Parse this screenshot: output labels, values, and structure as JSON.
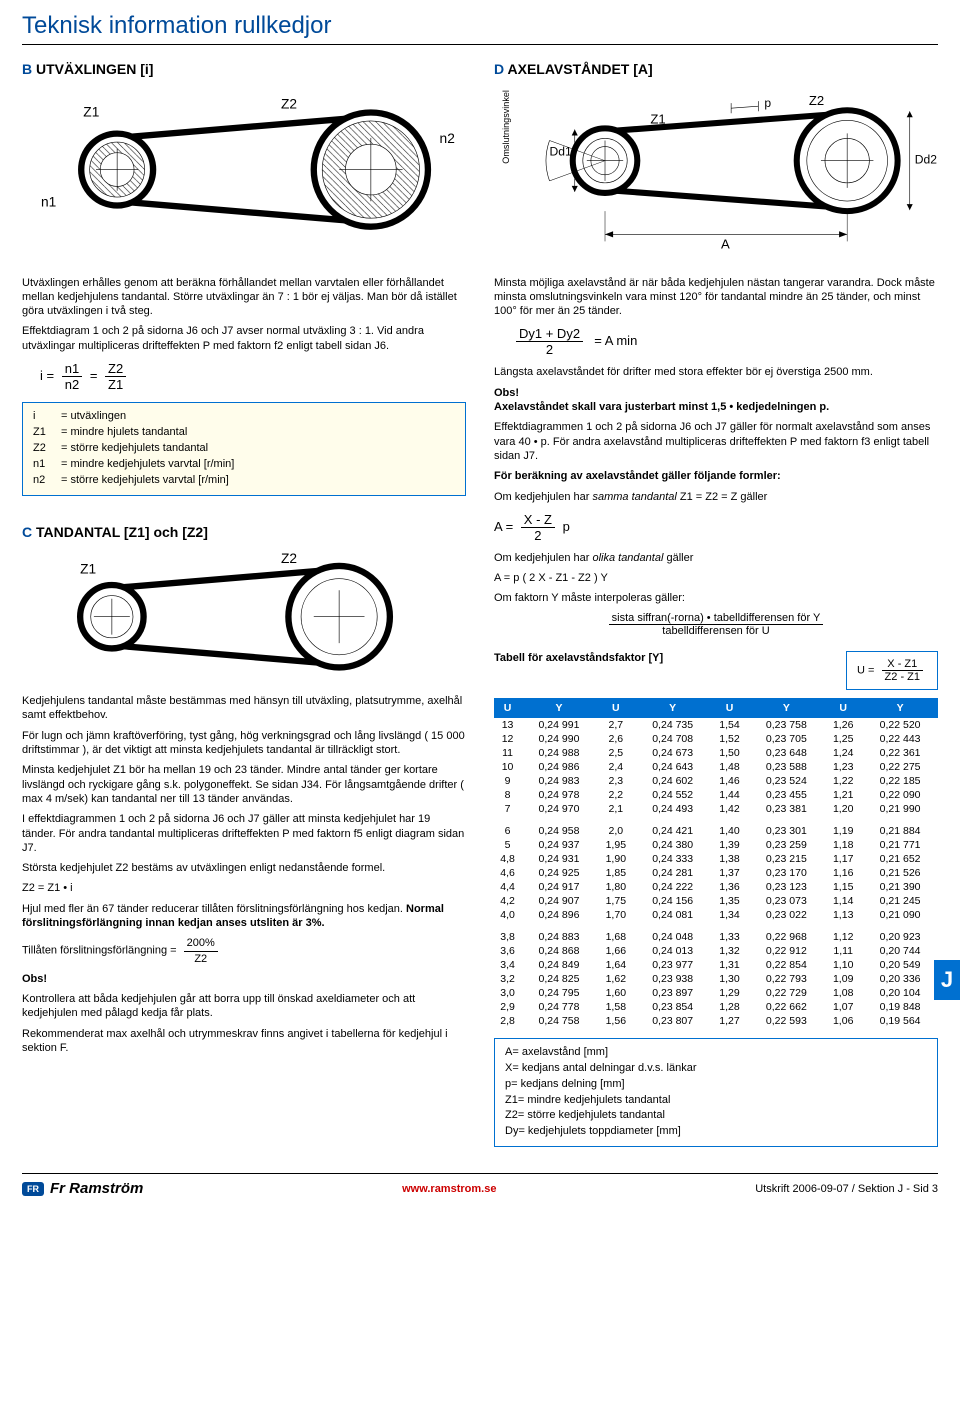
{
  "page_title": "Teknisk information rullkedjor",
  "sections": {
    "B": {
      "letter": "B",
      "title": "UTVÄXLINGEN  [i]"
    },
    "D": {
      "letter": "D",
      "title": "AXELAVSTÅNDET  [A]"
    },
    "C": {
      "letter": "C",
      "title": "TANDANTAL  [Z1] och  [Z2]"
    }
  },
  "diagram_labels": {
    "Z1": "Z1",
    "Z2": "Z2",
    "n1": "n1",
    "n2": "n2",
    "Dd1": "Dd1",
    "Dd2": "Dd2",
    "p": "p",
    "A": "A",
    "omslut": "Omslutningsvinkel"
  },
  "text": {
    "b_p1": "Utväxlingen erhålles genom att beräkna förhållandet mellan varvtalen eller förhållandet mellan kedjehjulens tandantal. Större utväxlingar än 7 : 1 bör ej väljas. Man bör då istället göra utväxlingen i två steg.",
    "b_p2": "Effektdiagram 1 och 2 på sidorna J6 och J7 avser normal utväxling 3 : 1. Vid andra utväxlingar multipliceras drifteffekten P med faktorn f2 enligt tabell sidan J6.",
    "i_formula_lhs": "i  =",
    "i_formula_eq": "=",
    "d_p1": "Minsta möjliga axelavstånd är när båda kedjehjulen nästan tangerar varandra. Dock måste minsta omslutningsvinkeln vara minst 120° för tandantal mindre än 25 tänder, och minst 100° för mer än 25 tänder.",
    "amin_lhs": "Dy1 + Dy2",
    "amin_den": "2",
    "amin_rhs": "=   A min",
    "d_p2": "Längsta axelavståndet för drifter med stora effekter bör ej överstiga 2500 mm.",
    "d_obs_h": "Obs!",
    "d_obs": "Axelavståndet skall vara justerbart minst 1,5 • kedjedelningen p.",
    "d_p3": "Effektdiagrammen 1 och 2 på sidorna J6 och J7 gäller för normalt axelavstånd som anses vara 40 • p. För andra axelavstånd multipliceras drifteffekten P med faktorn f3 enligt tabell sidan J7.",
    "d_p4": "För beräkning av axelavståndet gäller följande formler:",
    "d_same": "Om kedjehjulen har samma tandantal Z1 = Z2 = Z gäller",
    "a_same_lhs": "A =",
    "a_same_num": "X - Z",
    "a_same_den": "2",
    "a_same_tail": "p",
    "d_diff": "Om kedjehjulen har olika tandantal gäller",
    "a_diff": "A = p ( 2 X - Z1 - Z2 ) Y",
    "d_interp": "Om faktorn Y måste interpoleras gäller:",
    "interp_num": "sista siffran(-rorna) • tabelldifferensen för Y",
    "interp_den": "tabelldifferensen för U",
    "tabell_title": "Tabell för axelavståndsfaktor  [Y]",
    "u_formula_lhs": "U =",
    "u_formula_num": "X - Z1",
    "u_formula_den": "Z2 - Z1",
    "c_p1": "Kedjehjulens tandantal måste bestämmas med hänsyn till utväxling, platsutrymme, axelhål samt effektbehov.",
    "c_p2": "För lugn och jämn kraftöverföring, tyst gång, hög verkningsgrad och lång livslängd ( 15 000 driftstimmar ), är det viktigt att minsta kedjehjulets tandantal är tillräckligt stort.",
    "c_p3": "Minsta kedjehjulet Z1 bör ha mellan 19 och 23 tänder. Mindre antal tänder ger kortare livslängd och ryckigare gång s.k. polygoneffekt. Se sidan J34. För långsamtgående drifter ( max 4 m/sek) kan tandantal ner till 13 tänder användas.",
    "c_p4": "I effektdiagrammen 1 och 2 på sidorna J6 och J7 gäller att minsta kedjehjulet har 19 tänder. För andra tandantal multipliceras drifteffekten P med faktorn f5 enligt diagram sidan J7.",
    "c_p5": "Största kedjehjulet Z2 bestäms av utväxlingen enligt nedanstående formel.",
    "c_z2": "Z2 = Z1 • i",
    "c_p6a": "Hjul med fler än 67 tänder reducerar tillåten förslitningsförlängning hos kedjan. ",
    "c_p6b": "Normal förslitningsförlängning innan kedjan anses utsliten är 3%.",
    "c_wear_lhs": "Tillåten förslitningsförlängning =",
    "c_wear_num": "200%",
    "c_wear_den": "Z2",
    "c_obs_h": "Obs!",
    "c_obs_p1": "Kontrollera att båda kedjehjulen går att borra upp till önskad axeldiameter och att kedjehjulen med pålagd kedja får plats.",
    "c_obs_p2": "Rekommenderat max axelhål och utrymmeskrav finns angivet i tabellerna för kedjehjul i sektion F."
  },
  "legend_i": [
    {
      "sym": "i",
      "desc": "= utväxlingen"
    },
    {
      "sym": "Z1",
      "desc": "= mindre hjulets tandantal"
    },
    {
      "sym": "Z2",
      "desc": "= större kedjehjulets tandantal"
    },
    {
      "sym": "n1",
      "desc": "= mindre kedjehjulets varvtal  [r/min]"
    },
    {
      "sym": "n2",
      "desc": "= större kedjehjulets varvtal  [r/min]"
    }
  ],
  "legend_A": [
    {
      "sym": "A",
      "desc": "= axelavstånd  [mm]"
    },
    {
      "sym": "X",
      "desc": "= kedjans antal delningar d.v.s. länkar"
    },
    {
      "sym": "p",
      "desc": "= kedjans delning  [mm]"
    },
    {
      "sym": "Z1",
      "desc": "= mindre kedjehjulets tandantal"
    },
    {
      "sym": "Z2",
      "desc": "= större kedjehjulets tandantal"
    },
    {
      "sym": "Dy",
      "desc": "= kedjehjulets toppdiameter  [mm]"
    }
  ],
  "ytable": {
    "headers": [
      "U",
      "Y",
      "U",
      "Y",
      "U",
      "Y",
      "U",
      "Y"
    ],
    "blocks": [
      [
        [
          "13",
          "0,24 991",
          "2,7",
          "0,24 735",
          "1,54",
          "0,23 758",
          "1,26",
          "0,22 520"
        ],
        [
          "12",
          "0,24 990",
          "2,6",
          "0,24 708",
          "1,52",
          "0,23 705",
          "1,25",
          "0,22 443"
        ],
        [
          "11",
          "0,24 988",
          "2,5",
          "0,24 673",
          "1,50",
          "0,23 648",
          "1,24",
          "0,22 361"
        ],
        [
          "10",
          "0,24 986",
          "2,4",
          "0,24 643",
          "1,48",
          "0,23 588",
          "1,23",
          "0,22 275"
        ],
        [
          "9",
          "0,24 983",
          "2,3",
          "0,24 602",
          "1,46",
          "0,23 524",
          "1,22",
          "0,22 185"
        ],
        [
          "8",
          "0,24 978",
          "2,2",
          "0,24 552",
          "1,44",
          "0,23 455",
          "1,21",
          "0,22 090"
        ],
        [
          "7",
          "0,24 970",
          "2,1",
          "0,24 493",
          "1,42",
          "0,23 381",
          "1,20",
          "0,21 990"
        ]
      ],
      [
        [
          "6",
          "0,24 958",
          "2,0",
          "0,24 421",
          "1,40",
          "0,23 301",
          "1,19",
          "0,21 884"
        ],
        [
          "5",
          "0,24 937",
          "1,95",
          "0,24 380",
          "1,39",
          "0,23 259",
          "1,18",
          "0,21 771"
        ],
        [
          "4,8",
          "0,24 931",
          "1,90",
          "0,24 333",
          "1,38",
          "0,23 215",
          "1,17",
          "0,21 652"
        ],
        [
          "4,6",
          "0,24 925",
          "1,85",
          "0,24 281",
          "1,37",
          "0,23 170",
          "1,16",
          "0,21 526"
        ],
        [
          "4,4",
          "0,24 917",
          "1,80",
          "0,24 222",
          "1,36",
          "0,23 123",
          "1,15",
          "0,21 390"
        ],
        [
          "4,2",
          "0,24 907",
          "1,75",
          "0,24 156",
          "1,35",
          "0,23 073",
          "1,14",
          "0,21 245"
        ],
        [
          "4,0",
          "0,24 896",
          "1,70",
          "0,24 081",
          "1,34",
          "0,23 022",
          "1,13",
          "0,21 090"
        ]
      ],
      [
        [
          "3,8",
          "0,24 883",
          "1,68",
          "0,24 048",
          "1,33",
          "0,22 968",
          "1,12",
          "0,20 923"
        ],
        [
          "3,6",
          "0,24 868",
          "1,66",
          "0,24 013",
          "1,32",
          "0,22 912",
          "1,11",
          "0,20 744"
        ],
        [
          "3,4",
          "0,24 849",
          "1,64",
          "0,23 977",
          "1,31",
          "0,22 854",
          "1,10",
          "0,20 549"
        ],
        [
          "3,2",
          "0,24 825",
          "1,62",
          "0,23 938",
          "1,30",
          "0,22 793",
          "1,09",
          "0,20 336"
        ],
        [
          "3,0",
          "0,24 795",
          "1,60",
          "0,23 897",
          "1,29",
          "0,22 729",
          "1,08",
          "0,20 104"
        ],
        [
          "2,9",
          "0,24 778",
          "1,58",
          "0,23 854",
          "1,28",
          "0,22 662",
          "1,07",
          "0,19 848"
        ],
        [
          "2,8",
          "0,24 758",
          "1,56",
          "0,23 807",
          "1,27",
          "0,22 593",
          "1,06",
          "0,19 564"
        ]
      ]
    ]
  },
  "footer": {
    "brand": "Fr Ramström",
    "www": "www.ramstrom.se",
    "printinfo": "Utskrift 2006-09-07 / Sektion J - Sid 3"
  },
  "side_tab": "J",
  "colors": {
    "brand_blue": "#004a99",
    "accent_blue": "#0070d0",
    "legend_bg": "#fffdeb",
    "red": "#c00000"
  }
}
